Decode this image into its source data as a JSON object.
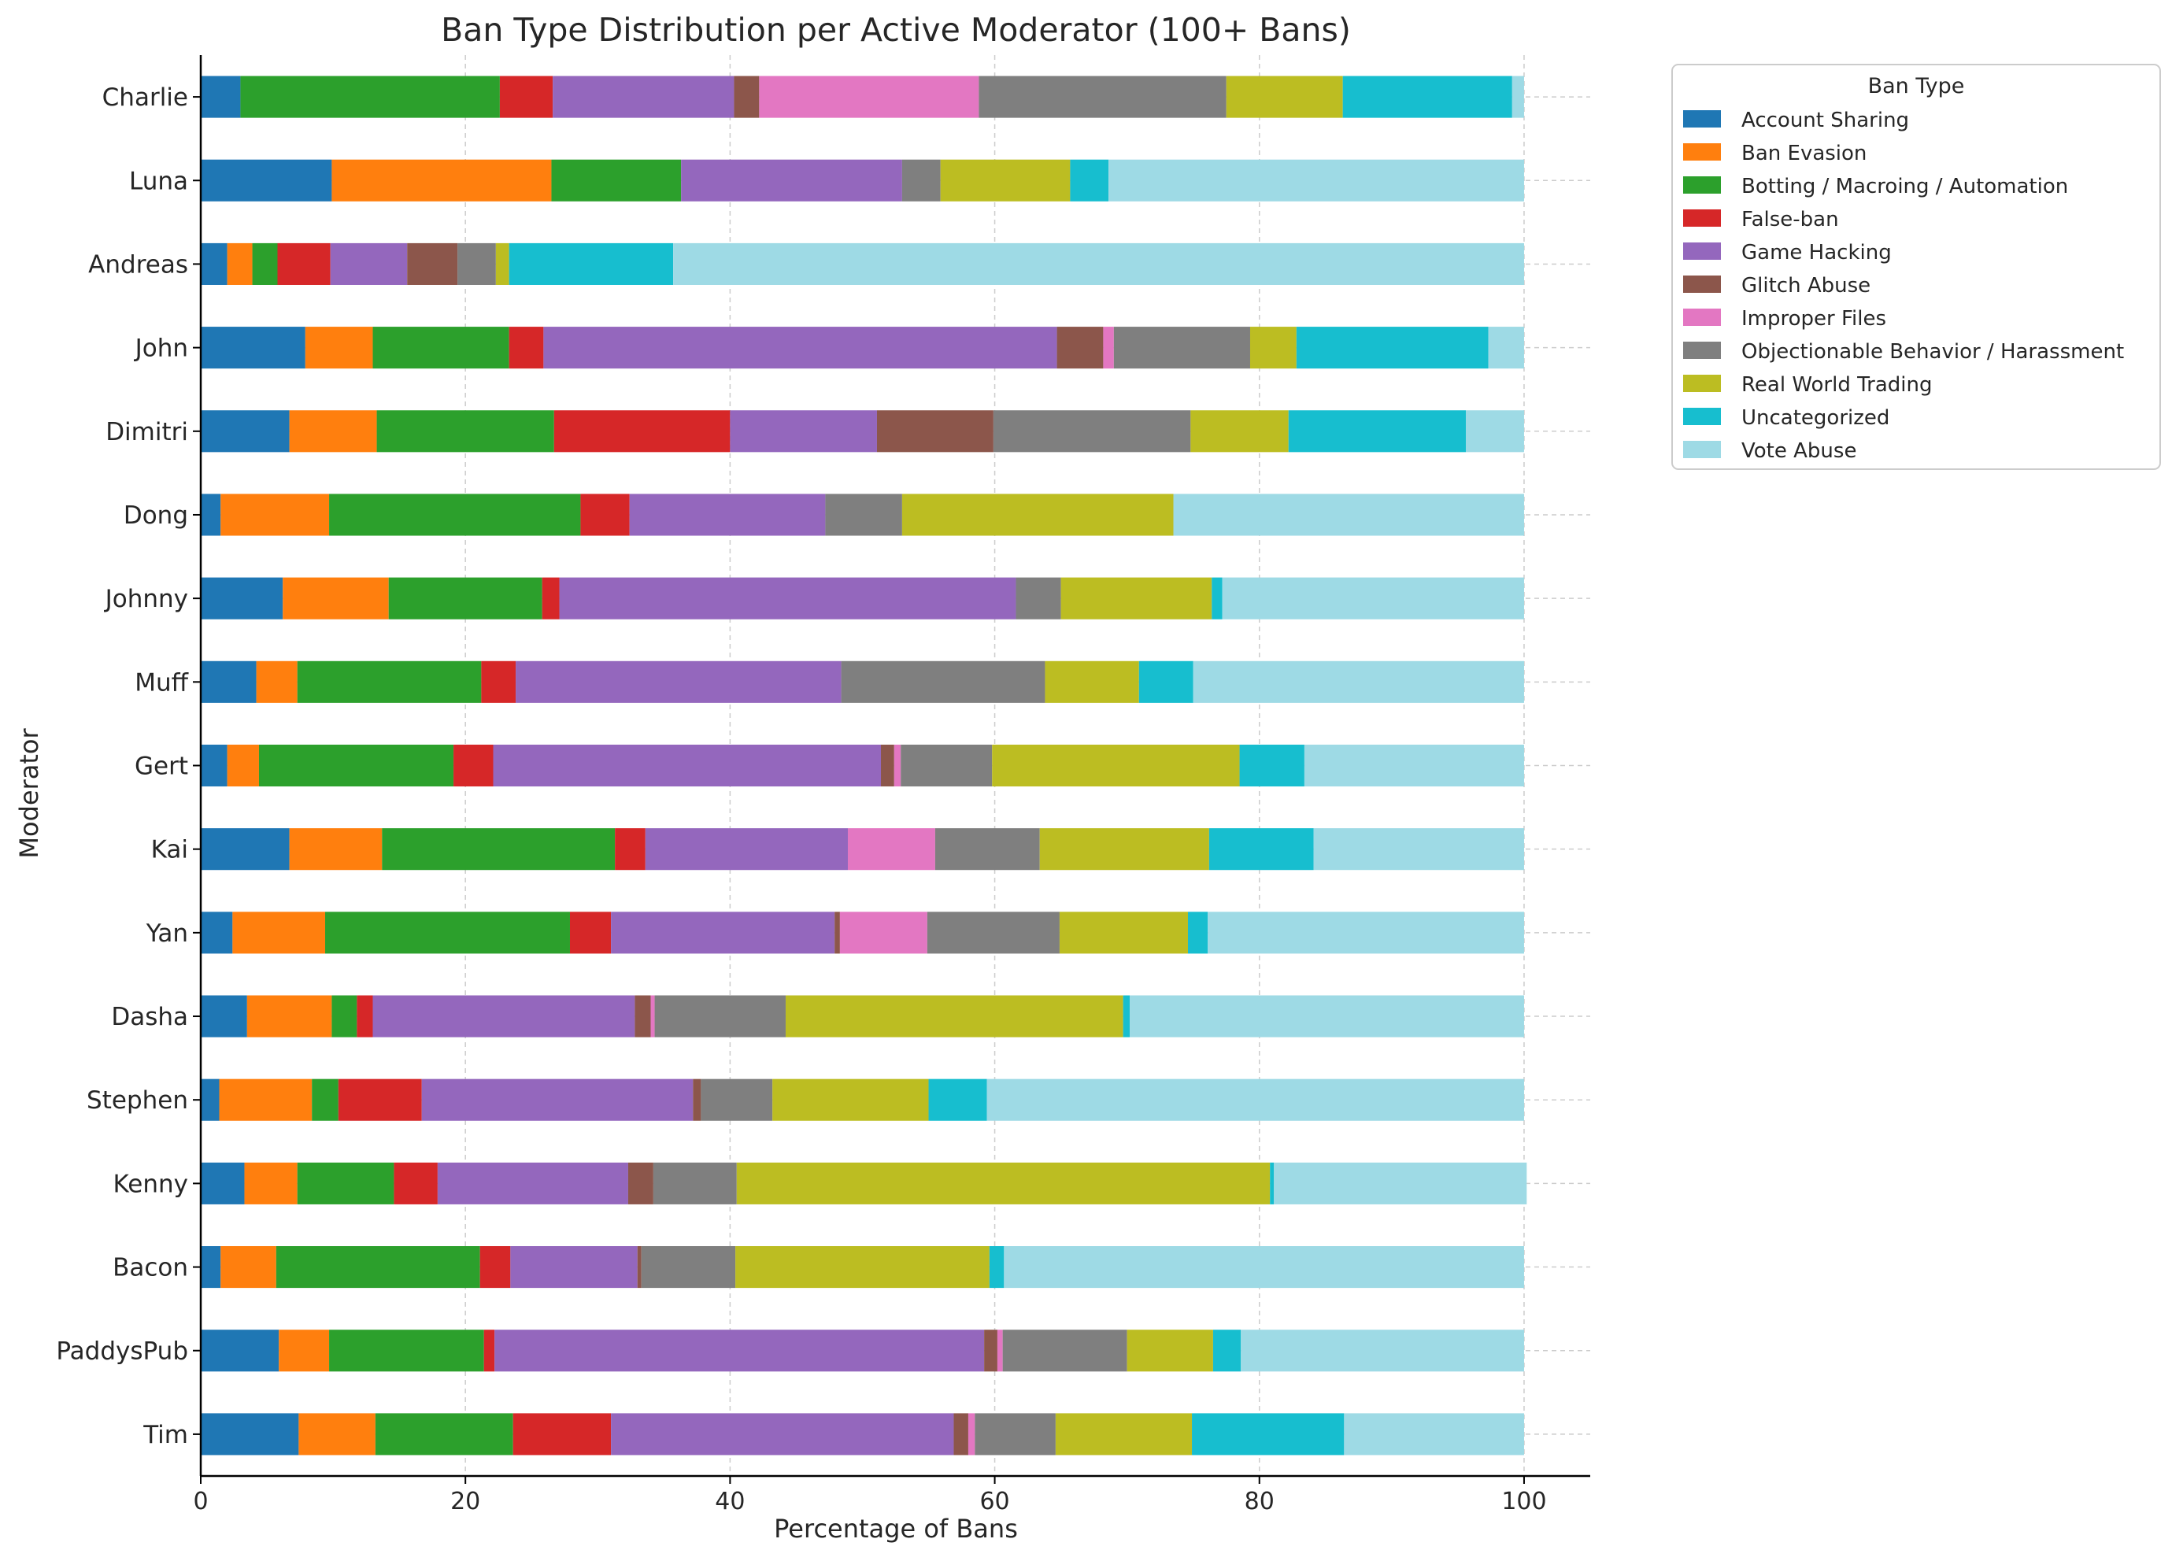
{
  "chart_data": {
    "type": "bar",
    "orientation": "horizontal",
    "stacked": true,
    "title": "Ban Type Distribution per Active Moderator (100+ Bans)",
    "xlabel": "Percentage of Bans",
    "ylabel": "Moderator",
    "xlim": [
      0,
      105
    ],
    "xticks": [
      "0",
      "20",
      "40",
      "60",
      "80",
      "100"
    ],
    "grid": true,
    "legend": {
      "title": "Ban Type",
      "placement": "outside top-right"
    },
    "categories": [
      "Charlie",
      "Luna",
      "Andreas",
      "John",
      "Dimitri",
      "Dong",
      "Johnny",
      "Muff",
      "Gert",
      "Kai",
      "Yan",
      "Dasha",
      "Stephen",
      "Kenny",
      "Bacon",
      "PaddysPub",
      "Tim"
    ],
    "series": [
      {
        "name": "Account Sharing",
        "color": "#1f77b4",
        "values": [
          3.0,
          9.9,
          2.0,
          7.9,
          6.7,
          1.5,
          6.2,
          4.2,
          2.0,
          6.7,
          2.4,
          3.5,
          1.4,
          3.3,
          1.5,
          5.9,
          7.4
        ]
      },
      {
        "name": "Ban Evasion",
        "color": "#ff7f0e",
        "values": [
          0.0,
          16.6,
          1.9,
          5.1,
          6.6,
          8.2,
          8.0,
          3.1,
          2.4,
          7.0,
          7.0,
          6.4,
          7.0,
          4.0,
          4.2,
          3.8,
          5.8
        ]
      },
      {
        "name": "Botting / Macroing / Automation",
        "color": "#2ca02c",
        "values": [
          19.6,
          9.8,
          1.9,
          10.3,
          13.4,
          19.0,
          11.6,
          13.9,
          14.7,
          17.6,
          18.5,
          1.9,
          2.0,
          7.3,
          15.4,
          11.7,
          10.4
        ]
      },
      {
        "name": "False-ban",
        "color": "#d62728",
        "values": [
          4.0,
          0.0,
          4.0,
          2.6,
          13.3,
          3.7,
          1.3,
          2.6,
          3.0,
          2.3,
          3.1,
          1.2,
          6.3,
          3.3,
          2.3,
          0.8,
          7.4
        ]
      },
      {
        "name": "Game Hacking",
        "color": "#9467bd",
        "values": [
          13.7,
          16.7,
          5.8,
          38.8,
          11.1,
          14.8,
          34.5,
          24.6,
          29.3,
          15.3,
          16.9,
          19.8,
          20.5,
          14.4,
          9.6,
          37.0,
          25.9
        ]
      },
      {
        "name": "Glitch Abuse",
        "color": "#8c564b",
        "values": [
          1.9,
          0.0,
          3.8,
          3.5,
          8.8,
          0.0,
          0.0,
          0.0,
          1.0,
          0.0,
          0.4,
          1.2,
          0.6,
          1.9,
          0.3,
          1.0,
          1.1
        ]
      },
      {
        "name": "Improper Files",
        "color": "#e377c2",
        "values": [
          16.6,
          0.0,
          0.0,
          0.8,
          0.0,
          0.0,
          0.0,
          0.0,
          0.5,
          6.6,
          6.6,
          0.3,
          0.0,
          0.0,
          0.0,
          0.4,
          0.5
        ]
      },
      {
        "name": "Objectionable Behavior / Harassment",
        "color": "#7f7f7f",
        "values": [
          18.7,
          2.9,
          2.9,
          10.3,
          14.9,
          5.8,
          3.4,
          15.4,
          6.9,
          7.9,
          10.0,
          9.9,
          5.4,
          6.3,
          7.1,
          9.4,
          6.1
        ]
      },
      {
        "name": "Real World Trading",
        "color": "#bcbd22",
        "values": [
          8.8,
          9.8,
          1.0,
          3.5,
          7.4,
          20.5,
          11.4,
          7.1,
          18.7,
          12.8,
          9.7,
          25.5,
          11.8,
          40.3,
          19.2,
          6.5,
          10.3
        ]
      },
      {
        "name": "Uncategorized",
        "color": "#17becf",
        "values": [
          12.8,
          2.9,
          12.4,
          14.5,
          13.4,
          0.0,
          0.8,
          4.1,
          4.9,
          7.9,
          1.5,
          0.5,
          4.4,
          0.3,
          1.1,
          2.1,
          11.5
        ]
      },
      {
        "name": "Vote Abuse",
        "color": "#9edae5",
        "values": [
          0.9,
          31.4,
          64.3,
          2.7,
          4.4,
          26.5,
          22.8,
          25.0,
          16.6,
          15.9,
          23.9,
          29.8,
          40.6,
          19.1,
          39.3,
          21.4,
          13.6
        ]
      }
    ]
  }
}
